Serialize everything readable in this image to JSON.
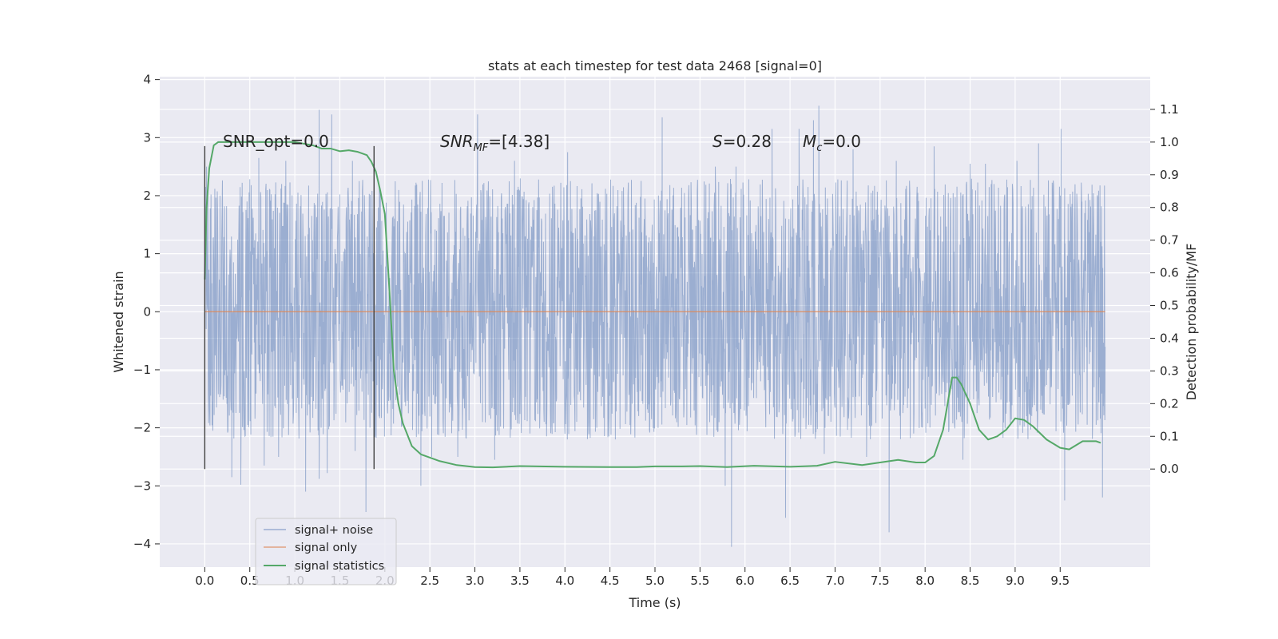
{
  "chart_data": {
    "type": "line",
    "title": "stats at each timestep for test data 2468 [signal=0]",
    "xlabel": "Time (s)",
    "ylabel": "Whitened strain",
    "y2label": "Detection probability/MF",
    "xlim": [
      -0.5,
      10.5
    ],
    "ylim": [
      -4.4,
      4.05
    ],
    "y2lim": [
      -0.3,
      1.2
    ],
    "xticks": [
      0.0,
      0.5,
      1.0,
      1.5,
      2.0,
      2.5,
      3.0,
      3.5,
      4.0,
      4.5,
      5.0,
      5.5,
      6.0,
      6.5,
      7.0,
      7.5,
      8.0,
      8.5,
      9.0,
      9.5
    ],
    "xtick_labels": [
      "0.0",
      "0.5",
      "1.0",
      "1.5",
      "2.0",
      "2.5",
      "3.0",
      "3.5",
      "4.0",
      "4.5",
      "5.0",
      "5.5",
      "6.0",
      "6.5",
      "7.0",
      "7.5",
      "8.0",
      "8.5",
      "9.0",
      "9.5"
    ],
    "yticks": [
      -4,
      -3,
      -2,
      -1,
      0,
      1,
      2,
      3,
      4
    ],
    "ytick_labels": [
      "−4",
      "−3",
      "−2",
      "−1",
      "0",
      "1",
      "2",
      "3",
      "4"
    ],
    "y2ticks": [
      0.0,
      0.1,
      0.2,
      0.3,
      0.4,
      0.5,
      0.6,
      0.7,
      0.8,
      0.9,
      1.0,
      1.1
    ],
    "y2tick_labels": [
      "0.0",
      "0.1",
      "0.2",
      "0.3",
      "0.4",
      "0.5",
      "0.6",
      "0.7",
      "0.8",
      "0.9",
      "1.0",
      "1.1"
    ],
    "grid": true,
    "legend_position": "lower-left",
    "background": "#eaeaf2",
    "series": [
      {
        "name": "signal+ noise",
        "color": "#4c72b0",
        "kind": "noise",
        "x_range": [
          0.0,
          10.0
        ],
        "band": [
          -1.45,
          1.55
        ],
        "spikes": [
          {
            "t": 0.02,
            "v": 2.5
          },
          {
            "t": 0.09,
            "v": -2.05
          },
          {
            "t": 0.3,
            "v": -2.85
          },
          {
            "t": 0.4,
            "v": -2.98
          },
          {
            "t": 0.6,
            "v": 2.65
          },
          {
            "t": 0.66,
            "v": -2.65
          },
          {
            "t": 0.82,
            "v": -2.5
          },
          {
            "t": 0.9,
            "v": 2.6
          },
          {
            "t": 1.12,
            "v": -3.1
          },
          {
            "t": 1.27,
            "v": 3.48
          },
          {
            "t": 1.27,
            "v": -2.88
          },
          {
            "t": 1.36,
            "v": -2.78
          },
          {
            "t": 1.41,
            "v": 3.4
          },
          {
            "t": 1.64,
            "v": 2.6
          },
          {
            "t": 1.67,
            "v": -2.4
          },
          {
            "t": 1.79,
            "v": -3.45
          },
          {
            "t": 1.88,
            "v": -2.15
          },
          {
            "t": 2.4,
            "v": -3.0
          },
          {
            "t": 2.52,
            "v": -2.5
          },
          {
            "t": 2.81,
            "v": -2.5
          },
          {
            "t": 3.03,
            "v": 3.4
          },
          {
            "t": 3.22,
            "v": -2.55
          },
          {
            "t": 3.44,
            "v": 2.6
          },
          {
            "t": 4.03,
            "v": 2.75
          },
          {
            "t": 4.56,
            "v": -2.2
          },
          {
            "t": 5.08,
            "v": 3.35
          },
          {
            "t": 5.67,
            "v": 2.5
          },
          {
            "t": 5.78,
            "v": -3.0
          },
          {
            "t": 5.85,
            "v": -4.05
          },
          {
            "t": 5.9,
            "v": 2.5
          },
          {
            "t": 6.3,
            "v": 3.15
          },
          {
            "t": 6.45,
            "v": -3.55
          },
          {
            "t": 6.6,
            "v": 3.15
          },
          {
            "t": 6.76,
            "v": 3.3
          },
          {
            "t": 6.82,
            "v": 3.55
          },
          {
            "t": 6.88,
            "v": -2.45
          },
          {
            "t": 7.2,
            "v": 2.8
          },
          {
            "t": 7.35,
            "v": -2.5
          },
          {
            "t": 7.6,
            "v": -3.8
          },
          {
            "t": 7.68,
            "v": 2.6
          },
          {
            "t": 8.1,
            "v": 2.85
          },
          {
            "t": 8.42,
            "v": -2.55
          },
          {
            "t": 8.5,
            "v": 2.55
          },
          {
            "t": 8.67,
            "v": 2.55
          },
          {
            "t": 9.02,
            "v": 2.6
          },
          {
            "t": 9.26,
            "v": 2.9
          },
          {
            "t": 9.51,
            "v": 3.15
          },
          {
            "t": 9.55,
            "v": -3.25
          },
          {
            "t": 9.97,
            "v": -3.2
          }
        ]
      },
      {
        "name": "signal only",
        "color": "#dd8452",
        "kind": "line",
        "axis": "left",
        "x": [
          0.0,
          10.0
        ],
        "y": [
          0.0,
          0.0
        ]
      },
      {
        "name": "signal statistics",
        "color": "#55a868",
        "kind": "line",
        "axis": "right",
        "x": [
          0.0,
          0.02,
          0.05,
          0.1,
          0.15,
          0.25,
          0.4,
          0.6,
          0.8,
          1.0,
          1.1,
          1.2,
          1.3,
          1.4,
          1.5,
          1.6,
          1.7,
          1.75,
          1.8,
          1.85,
          1.9,
          1.95,
          2.0,
          2.05,
          2.1,
          2.15,
          2.2,
          2.3,
          2.4,
          2.6,
          2.8,
          3.0,
          3.2,
          3.5,
          4.0,
          4.5,
          4.8,
          5.0,
          5.3,
          5.5,
          5.8,
          6.1,
          6.5,
          6.8,
          7.0,
          7.3,
          7.5,
          7.7,
          7.9,
          8.0,
          8.1,
          8.2,
          8.3,
          8.35,
          8.4,
          8.5,
          8.6,
          8.7,
          8.8,
          8.9,
          9.0,
          9.1,
          9.2,
          9.35,
          9.5,
          9.6,
          9.75,
          9.9,
          9.95
        ],
        "y": [
          0.58,
          0.8,
          0.92,
          0.99,
          1.0,
          1.0,
          1.0,
          1.0,
          1.0,
          1.0,
          0.995,
          0.99,
          0.98,
          0.98,
          0.972,
          0.975,
          0.97,
          0.965,
          0.96,
          0.94,
          0.91,
          0.85,
          0.78,
          0.55,
          0.3,
          0.2,
          0.14,
          0.07,
          0.045,
          0.025,
          0.012,
          0.006,
          0.005,
          0.009,
          0.007,
          0.006,
          0.006,
          0.008,
          0.008,
          0.009,
          0.006,
          0.01,
          0.007,
          0.01,
          0.022,
          0.012,
          0.02,
          0.028,
          0.02,
          0.02,
          0.04,
          0.12,
          0.28,
          0.28,
          0.26,
          0.2,
          0.12,
          0.09,
          0.1,
          0.12,
          0.155,
          0.15,
          0.13,
          0.09,
          0.065,
          0.06,
          0.085,
          0.085,
          0.08
        ]
      }
    ],
    "vlines": [
      0.0,
      1.88
    ],
    "annotations": {
      "snr_opt": "SNR_opt=0.0",
      "snr_mf_sym": "SNR",
      "snr_mf_sub": "MF",
      "snr_mf_val": "=[4.38]",
      "s_sym": "S",
      "s_val": "=0.28",
      "mc_sym": "M",
      "mc_sub": "c",
      "mc_val": "=0.0"
    }
  }
}
